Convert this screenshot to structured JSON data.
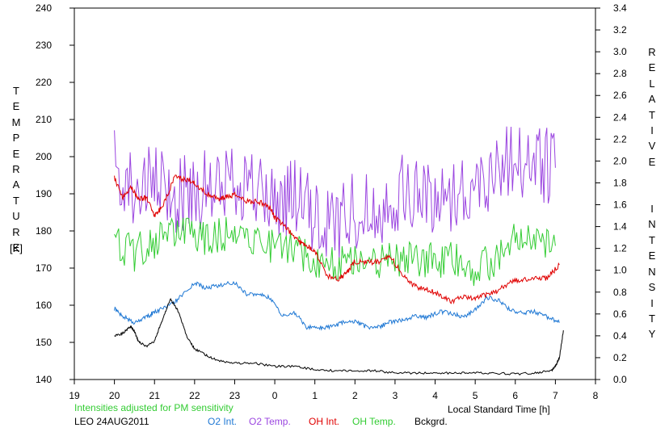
{
  "chart_data": {
    "type": "line",
    "xlabel": "Local Standard Time [h]",
    "x_ticks": [
      "19",
      "20",
      "21",
      "22",
      "23",
      "0",
      "1",
      "2",
      "3",
      "4",
      "5",
      "6",
      "7",
      "8"
    ],
    "x_range_hours": [
      19,
      32
    ],
    "y_left": {
      "label": "TEMPERATURE",
      "unit": "[K]",
      "range": [
        140,
        240
      ],
      "ticks": [
        "140",
        "150",
        "160",
        "170",
        "180",
        "190",
        "200",
        "210",
        "220",
        "230",
        "240"
      ]
    },
    "y_right": {
      "label": "RELATIVE INTENSITY",
      "range": [
        0,
        3.4
      ],
      "ticks": [
        "0.0",
        "0.2",
        "0.4",
        "0.6",
        "0.8",
        "1.0",
        "1.2",
        "1.4",
        "1.6",
        "1.8",
        "2.0",
        "2.2",
        "2.4",
        "2.6",
        "2.8",
        "3.0",
        "3.2",
        "3.4"
      ]
    },
    "note": "Intensities adjusted for PM sensitivity",
    "station": "LEO 24AUG2011",
    "series": [
      {
        "name": "O2 Int.",
        "color": "#1f78d4",
        "axis": "right",
        "x": [
          20.0,
          20.2,
          20.5,
          20.8,
          21.0,
          21.3,
          21.6,
          22.0,
          22.3,
          22.6,
          23.0,
          23.3,
          23.6,
          23.9,
          24.2,
          24.5,
          24.8,
          25.1,
          25.4,
          25.7,
          26.0,
          26.3,
          26.6,
          26.9,
          27.2,
          27.5,
          27.8,
          28.1,
          28.4,
          28.7,
          29.0,
          29.3,
          29.6,
          29.9,
          30.2,
          30.5,
          30.8,
          31.1
        ],
        "y": [
          0.65,
          0.58,
          0.52,
          0.57,
          0.62,
          0.66,
          0.74,
          0.88,
          0.84,
          0.86,
          0.89,
          0.78,
          0.79,
          0.74,
          0.58,
          0.61,
          0.48,
          0.47,
          0.48,
          0.52,
          0.53,
          0.48,
          0.48,
          0.53,
          0.54,
          0.58,
          0.57,
          0.62,
          0.61,
          0.57,
          0.64,
          0.75,
          0.72,
          0.63,
          0.61,
          0.62,
          0.57,
          0.52
        ]
      },
      {
        "name": "O2 Temp.",
        "color": "#9b46e0",
        "axis": "left",
        "x": [
          20.0,
          20.5,
          21.0,
          21.5,
          22.0,
          22.5,
          23.0,
          23.5,
          24.0,
          24.5,
          25.0,
          25.5,
          26.0,
          26.5,
          27.0,
          27.5,
          28.0,
          28.5,
          29.0,
          29.5,
          30.0,
          30.5,
          31.0
        ],
        "y": [
          198,
          191,
          192,
          189,
          192,
          190,
          195,
          191,
          187,
          190,
          182,
          182,
          186,
          186,
          190,
          190,
          188,
          191,
          191,
          198,
          200,
          198,
          197
        ]
      },
      {
        "name": "OH Int.",
        "color": "#e00000",
        "axis": "right",
        "x": [
          20.0,
          20.2,
          20.4,
          20.6,
          20.8,
          21.0,
          21.2,
          21.5,
          21.8,
          22.0,
          22.3,
          22.6,
          22.8,
          23.0,
          23.3,
          23.6,
          23.9,
          24.0,
          24.3,
          24.6,
          24.8,
          25.0,
          25.3,
          25.6,
          25.8,
          26.0,
          26.3,
          26.6,
          26.9,
          27.2,
          27.5,
          27.8,
          28.1,
          28.4,
          28.7,
          29.0,
          29.3,
          29.6,
          29.9,
          30.2,
          30.5,
          30.8,
          31.1
        ],
        "y": [
          1.85,
          1.66,
          1.76,
          1.66,
          1.66,
          1.5,
          1.58,
          1.85,
          1.83,
          1.8,
          1.7,
          1.65,
          1.67,
          1.69,
          1.63,
          1.63,
          1.57,
          1.48,
          1.38,
          1.26,
          1.23,
          1.18,
          0.95,
          0.92,
          0.98,
          1.08,
          1.07,
          1.08,
          1.12,
          0.95,
          0.85,
          0.82,
          0.78,
          0.72,
          0.75,
          0.74,
          0.78,
          0.82,
          0.9,
          0.91,
          0.93,
          0.93,
          1.05
        ]
      },
      {
        "name": "OH Temp.",
        "color": "#33cc33",
        "axis": "left",
        "x": [
          20.0,
          20.5,
          21.0,
          21.5,
          22.0,
          22.5,
          23.0,
          23.5,
          24.0,
          24.5,
          25.0,
          25.5,
          26.0,
          26.5,
          27.0,
          27.5,
          28.0,
          28.5,
          29.0,
          29.5,
          30.0,
          30.5,
          31.0
        ],
        "y": [
          177,
          174,
          177,
          180,
          179,
          178,
          181,
          178,
          176,
          175,
          172,
          171,
          173,
          172,
          172,
          172,
          172,
          172,
          170,
          172,
          178,
          176,
          176
        ]
      },
      {
        "name": "Bckgrd.",
        "color": "#000000",
        "axis": "right",
        "x": [
          20.0,
          20.2,
          20.4,
          20.5,
          20.6,
          20.8,
          21.0,
          21.2,
          21.4,
          21.6,
          21.8,
          22.0,
          22.3,
          22.6,
          23.0,
          23.5,
          24.0,
          24.5,
          25.0,
          25.5,
          26.0,
          26.5,
          27.0,
          27.5,
          28.0,
          28.5,
          29.0,
          29.5,
          30.0,
          30.5,
          30.9,
          31.0,
          31.1,
          31.2
        ],
        "y": [
          0.4,
          0.42,
          0.49,
          0.44,
          0.35,
          0.3,
          0.35,
          0.55,
          0.74,
          0.62,
          0.4,
          0.28,
          0.22,
          0.17,
          0.15,
          0.15,
          0.12,
          0.12,
          0.09,
          0.08,
          0.08,
          0.08,
          0.06,
          0.06,
          0.06,
          0.06,
          0.06,
          0.06,
          0.05,
          0.06,
          0.08,
          0.12,
          0.2,
          0.45
        ]
      }
    ]
  }
}
